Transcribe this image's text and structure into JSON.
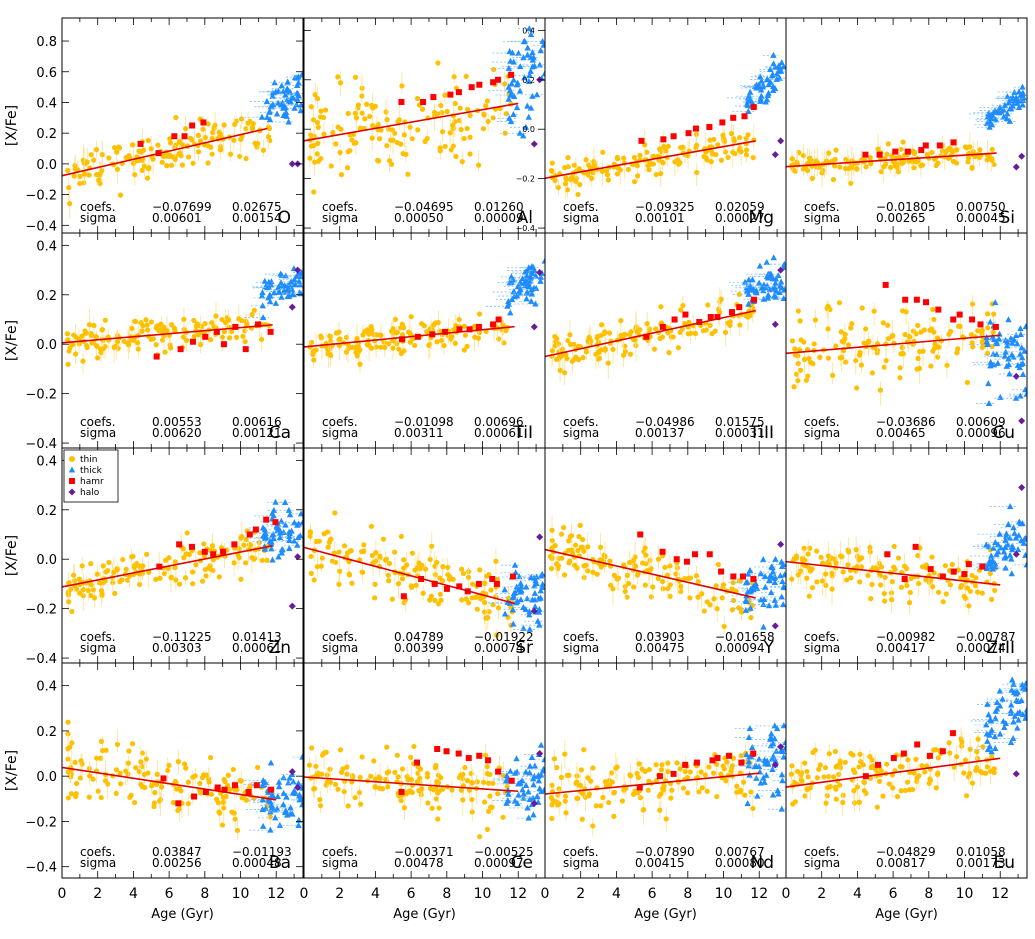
{
  "figure": {
    "xlabel": "Age (Gyr)",
    "ylabel": "[X/Fe]",
    "coefs_label": "coefs.",
    "sigma_label": "sigma",
    "xlim": [
      0,
      13.5
    ],
    "legend_position": "top-left of Zn panel",
    "colors": {
      "thin": "#ffc000",
      "thick": "#1e8cff",
      "hamr": "#ff0000",
      "halo": "#6a1b9a",
      "fit": "#e00000",
      "errbar_thin": "#ffe08a",
      "errbar_thick": "#7fbfff"
    }
  },
  "legend": [
    {
      "key": "thin",
      "label": "thin",
      "marker": "circle"
    },
    {
      "key": "thick",
      "label": "thick",
      "marker": "triangle"
    },
    {
      "key": "hamr",
      "label": "hamr",
      "marker": "square"
    },
    {
      "key": "halo",
      "label": "halo",
      "marker": "diamond"
    }
  ],
  "chart_data": [
    {
      "type": "scatter",
      "element": "O",
      "intercept": -0.07699,
      "slope": 0.02675,
      "sigma_intercept": 0.00601,
      "sigma_slope": 0.00154,
      "coef_text": [
        "−0.07699",
        "0.02675"
      ],
      "sigma_text": [
        "0.00601",
        "0.00154"
      ],
      "ylim": [
        -0.45,
        0.95
      ],
      "yticks": [
        -0.4,
        -0.2,
        0.0,
        0.2,
        0.4,
        0.6,
        0.8
      ],
      "ytick_labels": [
        "−0.4",
        "−0.2",
        "0.0",
        "0.2",
        "0.4",
        "0.6",
        "0.8"
      ],
      "ytick_side": "left",
      "scatter": 0.07,
      "thick_offset": 0.22,
      "hamr_y": [
        0.13,
        0.07,
        0.18,
        0.18,
        0.25,
        0.27
      ],
      "halo_y": [
        0.0,
        0.0
      ],
      "fit_x": [
        0,
        11.5
      ]
    },
    {
      "type": "scatter",
      "element": "Al",
      "intercept": -0.04695,
      "slope": 0.0126,
      "sigma_intercept": 0.0005,
      "sigma_slope": 9e-05,
      "coef_text": [
        "−0.04695",
        "0.01260"
      ],
      "sigma_text": [
        "0.00050",
        "0.00009"
      ],
      "ylim": [
        -0.42,
        0.45
      ],
      "yticks": [
        -0.4,
        -0.2,
        0.0,
        0.2,
        0.4
      ],
      "ytick_labels": [
        "−0.4",
        "−0.2",
        "0.0",
        "0.2",
        "0.4"
      ],
      "ytick_side": "right",
      "scatter": 0.09,
      "thick_offset": 0.1,
      "hamr_y": [
        0.11,
        0.11,
        0.13,
        0.14,
        0.15,
        0.17,
        0.18,
        0.19,
        0.2,
        0.22
      ],
      "halo_y": [
        -0.06,
        0.2
      ],
      "fit_x": [
        0,
        12
      ]
    },
    {
      "type": "scatter",
      "element": "Mg",
      "intercept": -0.09325,
      "slope": 0.02059,
      "sigma_intercept": 0.00101,
      "sigma_slope": 0.00027,
      "coef_text": [
        "−0.09325",
        "0.02059"
      ],
      "sigma_text": [
        "0.00101",
        "0.00027"
      ],
      "ylim": [
        -0.45,
        0.95
      ],
      "yticks": [],
      "ytick_labels": [],
      "ytick_side": "none",
      "scatter": 0.05,
      "thick_offset": 0.42,
      "hamr_y": [
        0.15,
        0.16,
        0.18,
        0.2,
        0.23,
        0.24,
        0.27,
        0.3,
        0.31,
        0.37
      ],
      "halo_y": [
        0.06,
        0.15
      ],
      "fit_x": [
        0,
        11.8
      ]
    },
    {
      "type": "scatter",
      "element": "Si",
      "intercept": -0.01805,
      "slope": 0.0075,
      "sigma_intercept": 0.00265,
      "sigma_slope": 0.00045,
      "coef_text": [
        "−0.01805",
        "0.00750"
      ],
      "sigma_text": [
        "0.00265",
        "0.00045"
      ],
      "ylim": [
        -0.45,
        0.95
      ],
      "yticks": [],
      "ytick_labels": [],
      "ytick_side": "none",
      "scatter": 0.035,
      "thick_offset": 0.36,
      "hamr_y": [
        0.06,
        0.06,
        0.08,
        0.08,
        0.09,
        0.12,
        0.12,
        0.14
      ],
      "halo_y": [
        -0.02,
        0.05
      ],
      "fit_x": [
        0,
        11.8
      ]
    },
    {
      "type": "scatter",
      "element": "Ca",
      "intercept": 0.00553,
      "slope": 0.00616,
      "sigma_intercept": 0.0062,
      "sigma_slope": 0.00121,
      "coef_text": [
        "0.00553",
        "0.00616"
      ],
      "sigma_text": [
        "0.00620",
        "0.00121"
      ],
      "ylim": [
        -0.42,
        0.45
      ],
      "yticks": [
        -0.4,
        -0.2,
        0.0,
        0.2,
        0.4
      ],
      "ytick_labels": [
        "−0.4",
        "−0.2",
        "0.0",
        "0.2",
        "0.4"
      ],
      "ytick_side": "left",
      "scatter": 0.035,
      "thick_offset": 0.18,
      "hamr_y": [
        -0.05,
        -0.02,
        0.01,
        0.03,
        0.05,
        0.0,
        0.07,
        -0.02,
        0.08,
        0.05
      ],
      "halo_y": [
        0.15,
        0.3
      ],
      "fit_x": [
        0,
        11.8
      ]
    },
    {
      "type": "scatter",
      "element": "TiI",
      "intercept": -0.01098,
      "slope": 0.00696,
      "sigma_intercept": 0.00311,
      "sigma_slope": 0.00061,
      "coef_text": [
        "−0.01098",
        "0.00696"
      ],
      "sigma_text": [
        "0.00311",
        "0.00061"
      ],
      "ylim": [
        -0.42,
        0.45
      ],
      "yticks": [],
      "ytick_labels": [],
      "ytick_side": "none",
      "scatter": 0.035,
      "thick_offset": 0.2,
      "hamr_y": [
        0.02,
        0.03,
        0.04,
        0.05,
        0.06,
        0.06,
        0.07,
        0.08,
        0.1
      ],
      "halo_y": [
        0.07,
        0.29
      ],
      "fit_x": [
        0,
        11.8
      ]
    },
    {
      "type": "scatter",
      "element": "TiII",
      "intercept": -0.04986,
      "slope": 0.01575,
      "sigma_intercept": 0.00137,
      "sigma_slope": 0.00031,
      "coef_text": [
        "−0.04986",
        "0.01575"
      ],
      "sigma_text": [
        "0.00137",
        "0.00031"
      ],
      "ylim": [
        -0.42,
        0.45
      ],
      "yticks": [],
      "ytick_labels": [],
      "ytick_side": "none",
      "scatter": 0.04,
      "thick_offset": 0.12,
      "hamr_y": [
        0.03,
        0.07,
        0.1,
        0.12,
        0.09,
        0.11,
        0.11,
        0.13,
        0.15,
        0.18
      ],
      "halo_y": [
        0.08,
        0.3
      ],
      "fit_x": [
        0,
        11.8
      ]
    },
    {
      "type": "scatter",
      "element": "Cu",
      "intercept": -0.03686,
      "slope": 0.00609,
      "sigma_intercept": 0.00465,
      "sigma_slope": 0.00096,
      "coef_text": [
        "−0.03686",
        "0.00609"
      ],
      "sigma_text": [
        "0.00465",
        "0.00096"
      ],
      "ylim": [
        -0.42,
        0.45
      ],
      "yticks": [],
      "ytick_labels": [],
      "ytick_side": "none",
      "scatter": 0.07,
      "thick_offset": -0.08,
      "hamr_y": [
        0.24,
        0.18,
        0.18,
        0.17,
        0.14,
        0.1,
        0.12,
        0.1,
        0.08,
        0.07
      ],
      "halo_y": [
        -0.13,
        -0.31
      ],
      "fit_x": [
        0,
        12
      ]
    },
    {
      "type": "scatter",
      "element": "Zn",
      "intercept": -0.11225,
      "slope": 0.01413,
      "sigma_intercept": 0.00303,
      "sigma_slope": 0.00061,
      "coef_text": [
        "−0.11225",
        "0.01413"
      ],
      "sigma_text": [
        "0.00303",
        "0.00061"
      ],
      "ylim": [
        -0.42,
        0.45
      ],
      "yticks": [
        -0.4,
        -0.2,
        0.0,
        0.2,
        0.4
      ],
      "ytick_labels": [
        "−0.4",
        "−0.2",
        "0.0",
        "0.2",
        "0.4"
      ],
      "ytick_side": "left",
      "scatter": 0.045,
      "thick_offset": 0.07,
      "hamr_y": [
        -0.03,
        0.06,
        0.05,
        0.03,
        0.02,
        0.03,
        0.06,
        0.1,
        0.12,
        0.16,
        0.15
      ],
      "halo_y": [
        -0.19,
        0.01
      ],
      "fit_x": [
        0,
        11.8
      ]
    },
    {
      "type": "scatter",
      "element": "Sr",
      "intercept": 0.04789,
      "slope": -0.01922,
      "sigma_intercept": 0.00399,
      "sigma_slope": 0.00074,
      "coef_text": [
        "0.04789",
        "−0.01922"
      ],
      "sigma_text": [
        "0.00399",
        "0.00074"
      ],
      "ylim": [
        -0.42,
        0.45
      ],
      "yticks": [],
      "ytick_labels": [],
      "ytick_side": "none",
      "scatter": 0.06,
      "thick_offset": 0.04,
      "hamr_y": [
        -0.15,
        -0.08,
        -0.1,
        -0.12,
        -0.11,
        -0.13,
        -0.1,
        -0.08,
        -0.1,
        -0.07
      ],
      "halo_y": [
        -0.21,
        0.09
      ],
      "fit_x": [
        0,
        11.8
      ]
    },
    {
      "type": "scatter",
      "element": "Y",
      "intercept": 0.03903,
      "slope": -0.01658,
      "sigma_intercept": 0.00475,
      "sigma_slope": 0.00094,
      "coef_text": [
        "0.03903",
        "−0.01658"
      ],
      "sigma_text": [
        "0.00475",
        "0.00094"
      ],
      "ylim": [
        -0.42,
        0.45
      ],
      "yticks": [],
      "ytick_labels": [],
      "ytick_side": "none",
      "scatter": 0.05,
      "thick_offset": 0.06,
      "hamr_y": [
        0.1,
        0.03,
        0.0,
        -0.01,
        0.02,
        0.02,
        -0.05,
        -0.07,
        -0.07,
        -0.08
      ],
      "halo_y": [
        -0.27,
        0.06
      ],
      "fit_x": [
        0,
        11.8
      ]
    },
    {
      "type": "scatter",
      "element": "ZrII",
      "intercept": -0.00982,
      "slope": -0.00787,
      "sigma_intercept": 0.00417,
      "sigma_slope": 0.00074,
      "coef_text": [
        "−0.00982",
        "−0.00787"
      ],
      "sigma_text": [
        "0.00417",
        "0.00074"
      ],
      "ylim": [
        -0.42,
        0.45
      ],
      "yticks": [],
      "ytick_labels": [],
      "ytick_side": "none",
      "scatter": 0.05,
      "thick_offset": 0.15,
      "hamr_y": [
        0.02,
        -0.08,
        0.05,
        -0.04,
        -0.07,
        -0.05,
        -0.06,
        -0.02,
        -0.03
      ],
      "halo_y": [
        0.02,
        0.29
      ],
      "fit_x": [
        0,
        12
      ]
    },
    {
      "type": "scatter",
      "element": "Ba",
      "intercept": 0.03847,
      "slope": -0.01193,
      "sigma_intercept": 0.00256,
      "sigma_slope": 0.00048,
      "coef_text": [
        "0.03847",
        "−0.01193"
      ],
      "sigma_text": [
        "0.00256",
        "0.00048"
      ],
      "ylim": [
        -0.45,
        0.5
      ],
      "yticks": [
        -0.4,
        -0.2,
        0.0,
        0.2,
        0.4
      ],
      "ytick_labels": [
        "−0.4",
        "−0.2",
        "0.0",
        "0.2",
        "0.4"
      ],
      "ytick_side": "left",
      "scatter": 0.07,
      "thick_offset": 0.02,
      "hamr_y": [
        -0.01,
        -0.12,
        -0.09,
        -0.07,
        -0.05,
        -0.06,
        -0.04,
        -0.07,
        -0.04,
        -0.06
      ],
      "halo_y": [
        0.02,
        -0.05
      ],
      "fit_x": [
        0,
        12
      ]
    },
    {
      "type": "scatter",
      "element": "Ce",
      "intercept": -0.00371,
      "slope": -0.00525,
      "sigma_intercept": 0.00478,
      "sigma_slope": 0.00097,
      "coef_text": [
        "−0.00371",
        "−0.00525"
      ],
      "sigma_text": [
        "0.00478",
        "0.00097"
      ],
      "ylim": [
        -0.45,
        0.5
      ],
      "yticks": [],
      "ytick_labels": [],
      "ytick_side": "none",
      "scatter": 0.07,
      "thick_offset": 0.04,
      "hamr_y": [
        -0.07,
        0.06,
        0.12,
        0.11,
        0.1,
        0.08,
        0.09,
        0.07,
        0.02,
        -0.02
      ],
      "halo_y": [
        -0.12,
        0.1
      ],
      "fit_x": [
        0,
        12
      ]
    },
    {
      "type": "scatter",
      "element": "Nd",
      "intercept": -0.0789,
      "slope": 0.00767,
      "sigma_intercept": 0.00415,
      "sigma_slope": 0.0008,
      "coef_text": [
        "−0.07890",
        "0.00767"
      ],
      "sigma_text": [
        "0.00415",
        "0.00080"
      ],
      "ylim": [
        -0.45,
        0.5
      ],
      "yticks": [],
      "ytick_labels": [],
      "ytick_side": "none",
      "scatter": 0.07,
      "thick_offset": 0.08,
      "hamr_y": [
        -0.05,
        0.0,
        0.01,
        0.05,
        0.06,
        0.07,
        0.08,
        0.09,
        0.06,
        0.1
      ],
      "halo_y": [
        0.05,
        0.13
      ],
      "fit_x": [
        0,
        12
      ]
    },
    {
      "type": "scatter",
      "element": "Eu",
      "intercept": -0.04829,
      "slope": 0.01058,
      "sigma_intercept": 0.00817,
      "sigma_slope": 0.00173,
      "coef_text": [
        "−0.04829",
        "0.01058"
      ],
      "sigma_text": [
        "0.00817",
        "0.00173"
      ],
      "ylim": [
        -0.45,
        0.5
      ],
      "yticks": [],
      "ytick_labels": [],
      "ytick_side": "none",
      "scatter": 0.06,
      "thick_offset": 0.22,
      "hamr_y": [
        0.0,
        0.05,
        0.08,
        0.1,
        0.14,
        0.09,
        0.11,
        0.19
      ],
      "halo_y": [
        0.01
      ],
      "fit_x": [
        0,
        12
      ]
    }
  ],
  "xaxis": {
    "ticks": [
      0,
      2,
      4,
      6,
      8,
      10,
      12
    ],
    "tick_labels": [
      "0",
      "2",
      "4",
      "6",
      "8",
      "10",
      "12"
    ]
  }
}
